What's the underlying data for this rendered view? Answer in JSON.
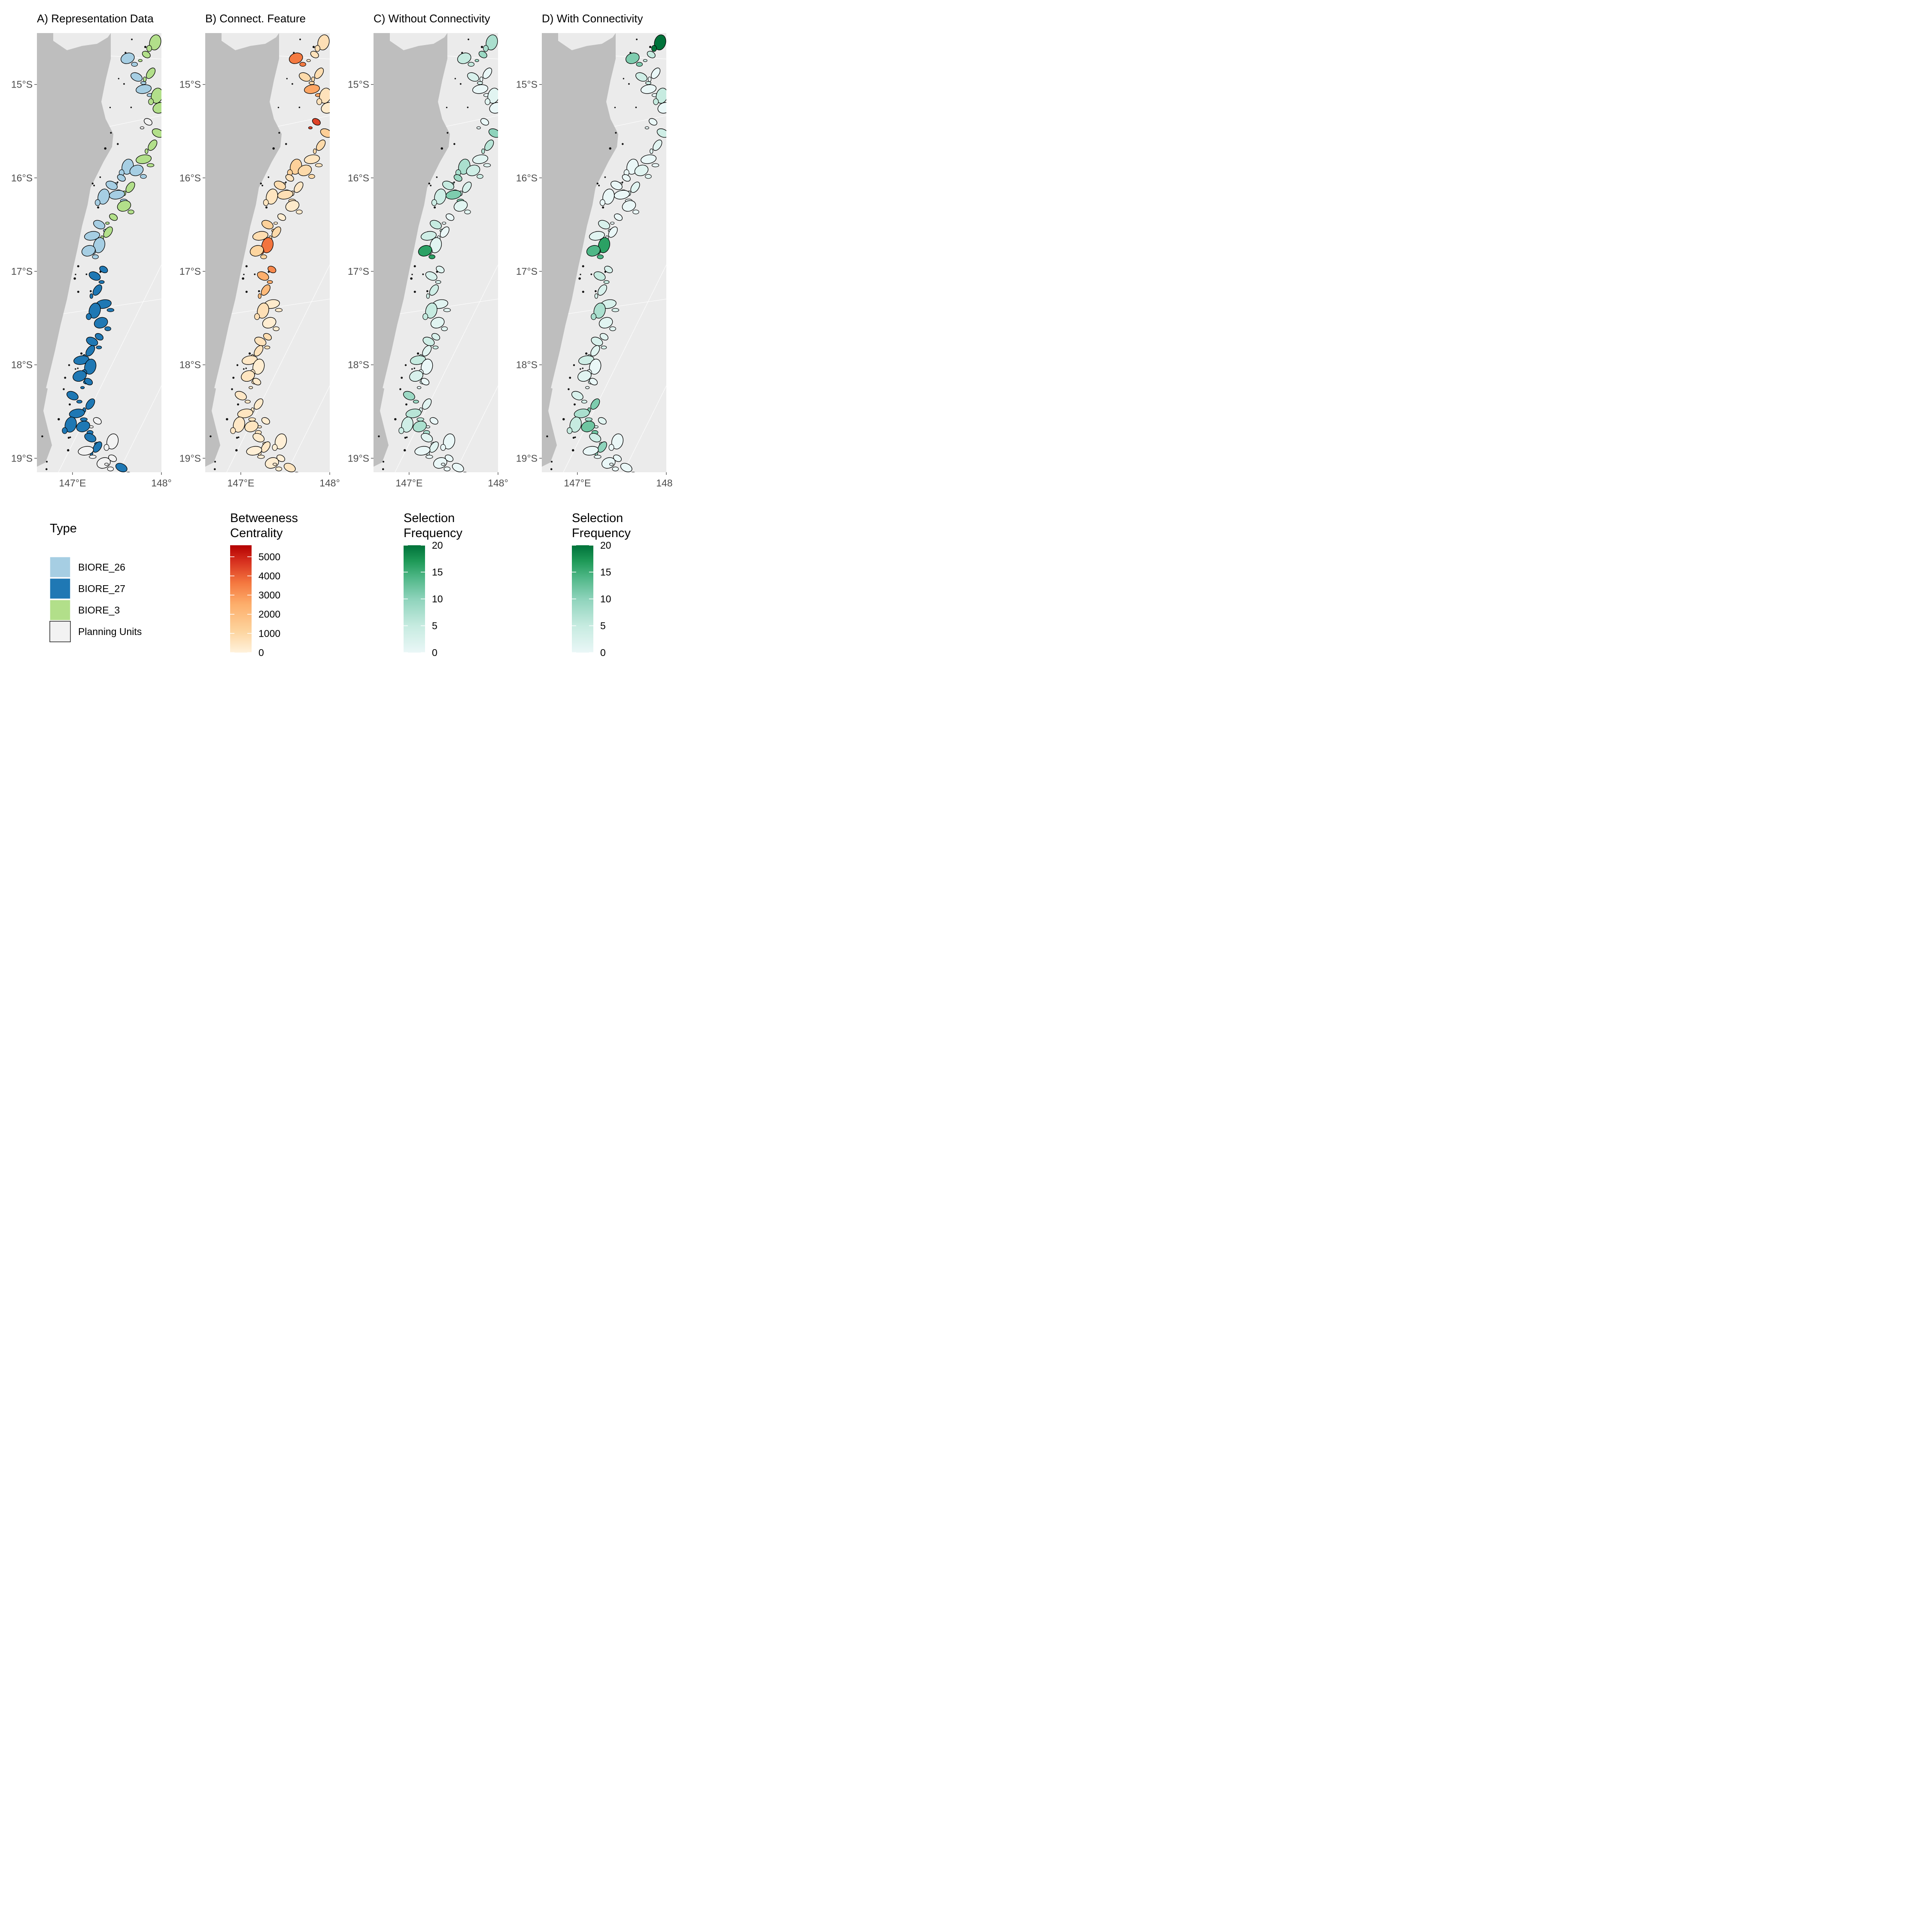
{
  "panels": [
    {
      "title": "A) Representation Data",
      "fill_mode": "type"
    },
    {
      "title": "B) Connect. Feature",
      "fill_mode": "betweenness"
    },
    {
      "title": "C) Without Connectivity",
      "fill_mode": "selection_c"
    },
    {
      "title": "D) With Connectivity",
      "fill_mode": "selection_d"
    }
  ],
  "axes": {
    "lat_ticks": [
      {
        "value": -15,
        "label": "15°S"
      },
      {
        "value": -16,
        "label": "16°S"
      },
      {
        "value": -17,
        "label": "17°S"
      },
      {
        "value": -18,
        "label": "18°S"
      },
      {
        "value": -19,
        "label": "19°S"
      }
    ],
    "lon_ticks": [
      {
        "value": 147,
        "label": "147°E"
      },
      {
        "value": 148,
        "label": "148°"
      }
    ],
    "lon_range": [
      146.6,
      148.0
    ],
    "lat_range": [
      -19.15,
      -14.45
    ]
  },
  "colors": {
    "panel_bg": "#ebebeb",
    "land": "#bebebe",
    "grid": "#ffffff",
    "unit_default": "#f2f2f2",
    "BIORE_26": "#a6cee3",
    "BIORE_27": "#1f78b4",
    "BIORE_3": "#b2df8a",
    "betweenness_scale": [
      "#fff2dc",
      "#fdd49e",
      "#fdae6b",
      "#f4773f",
      "#d7301f",
      "#b30000"
    ],
    "selection_scale": [
      "#eaf7f7",
      "#c6ebe0",
      "#8ed3bb",
      "#4fb787",
      "#1f9a58",
      "#00723a"
    ]
  },
  "legends": {
    "type": {
      "title": "Type",
      "items": [
        {
          "label": "BIORE_26",
          "color_key": "BIORE_26"
        },
        {
          "label": "BIORE_27",
          "color_key": "BIORE_27"
        },
        {
          "label": "BIORE_3",
          "color_key": "BIORE_3"
        },
        {
          "label": "Planning Units",
          "color_key": "unit_default"
        }
      ]
    },
    "betweenness": {
      "title_line1": "Betweeness",
      "title_line2": "Centrality",
      "min": 0,
      "max": 5600,
      "ticks": [
        "5000",
        "4000",
        "3000",
        "2000",
        "1000",
        "0"
      ],
      "tick_values": [
        5000,
        4000,
        3000,
        2000,
        1000,
        0
      ]
    },
    "selection_c": {
      "title_line1": "Selection",
      "title_line2": "Frequency",
      "min": 0,
      "max": 20,
      "ticks": [
        "20",
        "15",
        "10",
        "5",
        "0"
      ],
      "tick_values": [
        20,
        15,
        10,
        5,
        0
      ]
    },
    "selection_d": {
      "title_line1": "Selection",
      "title_line2": "Frequency",
      "min": 0,
      "max": 20,
      "ticks": [
        "20",
        "15",
        "10",
        "5",
        "0"
      ],
      "tick_values": [
        20,
        15,
        10,
        5,
        0
      ]
    }
  },
  "planning_units": [
    {
      "lon": 147.93,
      "lat": -14.55,
      "type": "BIORE_3",
      "btw": 700,
      "sel_c": 6,
      "sel_d": 20
    },
    {
      "lon": 147.62,
      "lat": -14.72,
      "type": "BIORE_26",
      "btw": 3300,
      "sel_c": 4,
      "sel_d": 9
    },
    {
      "lon": 147.83,
      "lat": -14.68,
      "type": "BIORE_3",
      "btw": 600,
      "sel_c": 7,
      "sel_d": 4
    },
    {
      "lon": 147.72,
      "lat": -14.92,
      "type": "BIORE_26",
      "btw": 900,
      "sel_c": 2,
      "sel_d": 3
    },
    {
      "lon": 147.88,
      "lat": -14.88,
      "type": "BIORE_3",
      "btw": 800,
      "sel_c": 0,
      "sel_d": 0
    },
    {
      "lon": 147.8,
      "lat": -15.05,
      "type": "BIORE_26",
      "btw": 2400,
      "sel_c": 0,
      "sel_d": 0
    },
    {
      "lon": 147.95,
      "lat": -15.12,
      "type": "BIORE_3",
      "btw": 600,
      "sel_c": 1,
      "sel_d": 4
    },
    {
      "lon": 147.98,
      "lat": -15.25,
      "type": "BIORE_3",
      "btw": 300,
      "sel_c": 0,
      "sel_d": 0
    },
    {
      "lon": 147.85,
      "lat": -15.4,
      "type": "none",
      "btw": 4200,
      "sel_c": 0,
      "sel_d": 0
    },
    {
      "lon": 147.96,
      "lat": -15.52,
      "type": "BIORE_3",
      "btw": 1300,
      "sel_c": 8,
      "sel_d": 3
    },
    {
      "lon": 147.9,
      "lat": -15.65,
      "type": "BIORE_3",
      "btw": 900,
      "sel_c": 5,
      "sel_d": 1
    },
    {
      "lon": 147.8,
      "lat": -15.8,
      "type": "BIORE_3",
      "btw": 500,
      "sel_c": 1,
      "sel_d": 0
    },
    {
      "lon": 147.62,
      "lat": -15.88,
      "type": "BIORE_26",
      "btw": 1200,
      "sel_c": 6,
      "sel_d": 0
    },
    {
      "lon": 147.72,
      "lat": -15.92,
      "type": "BIORE_26",
      "btw": 900,
      "sel_c": 3,
      "sel_d": 1
    },
    {
      "lon": 147.55,
      "lat": -16.0,
      "type": "BIORE_26",
      "btw": 600,
      "sel_c": 7,
      "sel_d": 0
    },
    {
      "lon": 147.44,
      "lat": -16.08,
      "type": "BIORE_26",
      "btw": 800,
      "sel_c": 4,
      "sel_d": 0
    },
    {
      "lon": 147.65,
      "lat": -16.1,
      "type": "BIORE_3",
      "btw": 400,
      "sel_c": 2,
      "sel_d": 1
    },
    {
      "lon": 147.5,
      "lat": -16.18,
      "type": "BIORE_26",
      "btw": 700,
      "sel_c": 9,
      "sel_d": 0
    },
    {
      "lon": 147.35,
      "lat": -16.2,
      "type": "BIORE_26",
      "btw": 500,
      "sel_c": 3,
      "sel_d": 0
    },
    {
      "lon": 147.58,
      "lat": -16.3,
      "type": "BIORE_3",
      "btw": 300,
      "sel_c": 1,
      "sel_d": 0
    },
    {
      "lon": 147.46,
      "lat": -16.42,
      "type": "BIORE_3",
      "btw": 200,
      "sel_c": 0,
      "sel_d": 0
    },
    {
      "lon": 147.3,
      "lat": -16.5,
      "type": "BIORE_26",
      "btw": 1200,
      "sel_c": 4,
      "sel_d": 2
    },
    {
      "lon": 147.4,
      "lat": -16.58,
      "type": "BIORE_3",
      "btw": 900,
      "sel_c": 0,
      "sel_d": 0
    },
    {
      "lon": 147.22,
      "lat": -16.62,
      "type": "BIORE_26",
      "btw": 800,
      "sel_c": 3,
      "sel_d": 1
    },
    {
      "lon": 147.3,
      "lat": -16.72,
      "type": "BIORE_26",
      "btw": 3400,
      "sel_c": 1,
      "sel_d": 15
    },
    {
      "lon": 147.18,
      "lat": -16.78,
      "type": "BIORE_26",
      "btw": 1100,
      "sel_c": 15,
      "sel_d": 12
    },
    {
      "lon": 147.35,
      "lat": -16.98,
      "type": "BIORE_27",
      "btw": 3000,
      "sel_c": 1,
      "sel_d": 2
    },
    {
      "lon": 147.25,
      "lat": -17.05,
      "type": "BIORE_27",
      "btw": 2200,
      "sel_c": 2,
      "sel_d": 4
    },
    {
      "lon": 147.28,
      "lat": -17.2,
      "type": "BIORE_27",
      "btw": 1900,
      "sel_c": 3,
      "sel_d": 2
    },
    {
      "lon": 147.35,
      "lat": -17.35,
      "type": "BIORE_27",
      "btw": 300,
      "sel_c": 1,
      "sel_d": 2
    },
    {
      "lon": 147.25,
      "lat": -17.42,
      "type": "BIORE_27",
      "btw": 700,
      "sel_c": 4,
      "sel_d": 6
    },
    {
      "lon": 147.32,
      "lat": -17.55,
      "type": "BIORE_27",
      "btw": 200,
      "sel_c": 1,
      "sel_d": 1
    },
    {
      "lon": 147.3,
      "lat": -17.7,
      "type": "BIORE_27",
      "btw": 800,
      "sel_c": 2,
      "sel_d": 1
    },
    {
      "lon": 147.22,
      "lat": -17.75,
      "type": "BIORE_27",
      "btw": 600,
      "sel_c": 3,
      "sel_d": 2
    },
    {
      "lon": 147.2,
      "lat": -17.85,
      "type": "BIORE_27",
      "btw": 600,
      "sel_c": 1,
      "sel_d": 1
    },
    {
      "lon": 147.1,
      "lat": -17.95,
      "type": "BIORE_27",
      "btw": 400,
      "sel_c": 4,
      "sel_d": 3
    },
    {
      "lon": 147.2,
      "lat": -18.02,
      "type": "BIORE_27",
      "btw": 200,
      "sel_c": 0,
      "sel_d": 0
    },
    {
      "lon": 147.08,
      "lat": -18.12,
      "type": "BIORE_27",
      "btw": 500,
      "sel_c": 2,
      "sel_d": 1
    },
    {
      "lon": 147.18,
      "lat": -18.18,
      "type": "BIORE_27",
      "btw": 300,
      "sel_c": 0,
      "sel_d": 0
    },
    {
      "lon": 147.0,
      "lat": -18.33,
      "type": "BIORE_27",
      "btw": 400,
      "sel_c": 7,
      "sel_d": 2
    },
    {
      "lon": 147.2,
      "lat": -18.42,
      "type": "BIORE_27",
      "btw": 300,
      "sel_c": 1,
      "sel_d": 9
    },
    {
      "lon": 147.05,
      "lat": -18.52,
      "type": "BIORE_27",
      "btw": 500,
      "sel_c": 5,
      "sel_d": 6
    },
    {
      "lon": 146.98,
      "lat": -18.64,
      "type": "BIORE_27",
      "btw": 400,
      "sel_c": 3,
      "sel_d": 4
    },
    {
      "lon": 147.12,
      "lat": -18.66,
      "type": "BIORE_27",
      "btw": 500,
      "sel_c": 6,
      "sel_d": 10
    },
    {
      "lon": 147.28,
      "lat": -18.6,
      "type": "none",
      "btw": 200,
      "sel_c": 0,
      "sel_d": 1
    },
    {
      "lon": 147.2,
      "lat": -18.78,
      "type": "BIORE_27",
      "btw": 300,
      "sel_c": 1,
      "sel_d": 3
    },
    {
      "lon": 147.28,
      "lat": -18.88,
      "type": "BIORE_27",
      "btw": 400,
      "sel_c": 1,
      "sel_d": 8
    },
    {
      "lon": 147.15,
      "lat": -18.92,
      "type": "none",
      "btw": 100,
      "sel_c": 0,
      "sel_d": 0
    },
    {
      "lon": 147.45,
      "lat": -18.82,
      "type": "none",
      "btw": 100,
      "sel_c": 0,
      "sel_d": 0
    },
    {
      "lon": 147.35,
      "lat": -19.05,
      "type": "none",
      "btw": 200,
      "sel_c": 0,
      "sel_d": 0
    },
    {
      "lon": 147.45,
      "lat": -19.0,
      "type": "none",
      "btw": 100,
      "sel_c": 0,
      "sel_d": 0
    },
    {
      "lon": 147.55,
      "lat": -19.1,
      "type": "BIORE_27",
      "btw": 500,
      "sel_c": 0,
      "sel_d": 0
    }
  ]
}
